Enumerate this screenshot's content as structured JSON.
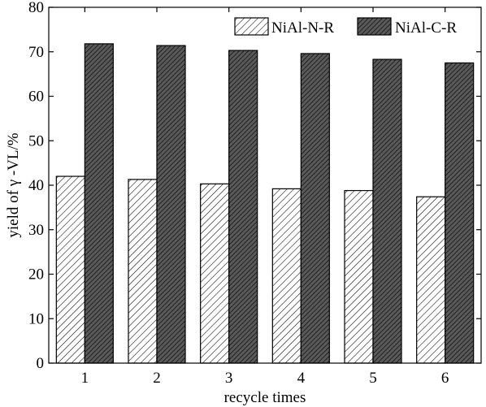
{
  "chart_data": {
    "type": "bar",
    "categories": [
      "1",
      "2",
      "3",
      "4",
      "5",
      "6"
    ],
    "series": [
      {
        "name": "NiAl-N-R",
        "values": [
          42.0,
          41.3,
          40.3,
          39.2,
          38.8,
          37.4
        ],
        "pattern": "light-diagonal-hatch",
        "fill": "#ffffff"
      },
      {
        "name": "NiAl-C-R",
        "values": [
          71.8,
          71.4,
          70.3,
          69.6,
          68.3,
          67.5
        ],
        "pattern": "dark-diagonal-hatch",
        "fill": "#555555"
      }
    ],
    "xlabel": "recycle times",
    "ylabel": "yield of  γ -VL/%",
    "ylim": [
      0,
      80
    ],
    "yticks": [
      0,
      10,
      20,
      30,
      40,
      50,
      60,
      70,
      80
    ],
    "grid": false,
    "legend_position": "top-right"
  }
}
